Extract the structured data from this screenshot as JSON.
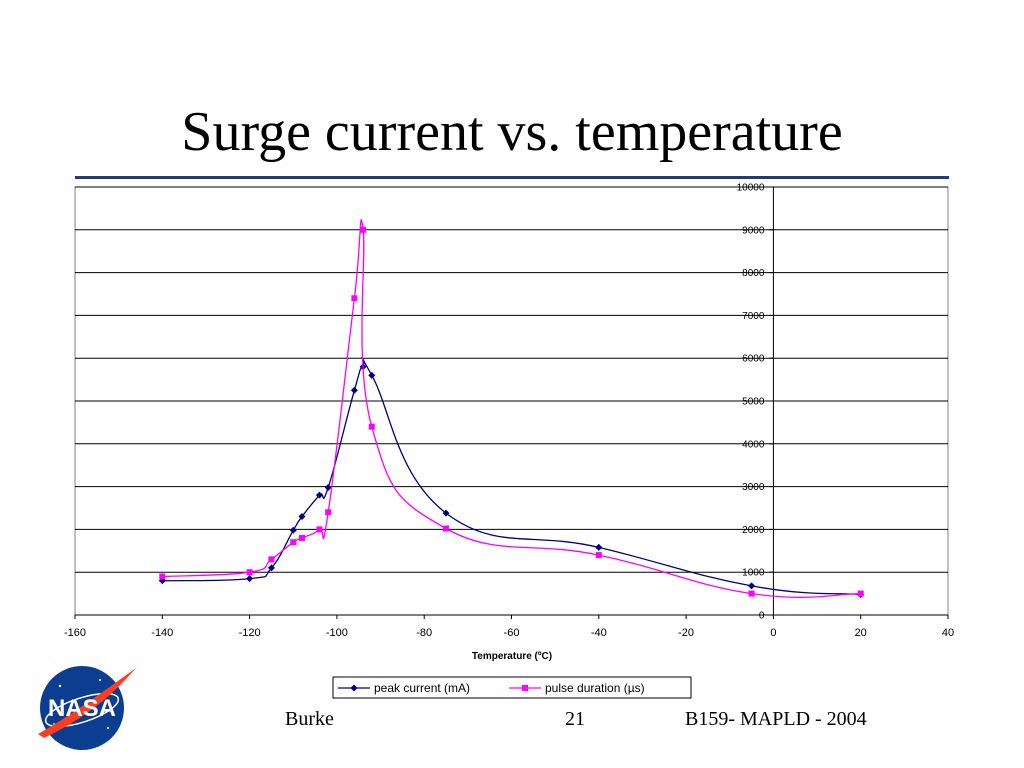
{
  "slide": {
    "title": "Surge current vs. temperature",
    "footer_author": "Burke",
    "footer_page": "21",
    "footer_conference": "B159- MAPLD - 2004",
    "logo_text": "NASA"
  },
  "colors": {
    "title_rule": "#1f3c78",
    "series_peak": "#000080",
    "series_pulse": "#ff00ff"
  },
  "chart_data": {
    "type": "scatter",
    "title": "",
    "xlabel": "Temperature (ºC)",
    "ylabel": "",
    "xlim": [
      -160,
      40
    ],
    "ylim": [
      0,
      10000
    ],
    "xticks": [
      -160,
      -140,
      -120,
      -100,
      -80,
      -60,
      -40,
      -20,
      0,
      20,
      40
    ],
    "yticks": [
      0,
      1000,
      2000,
      3000,
      4000,
      5000,
      6000,
      7000,
      8000,
      9000,
      10000
    ],
    "grid": "horizontal",
    "legend_position": "bottom",
    "series": [
      {
        "name": "peak current (mA)",
        "marker": "diamond",
        "color": "#000080",
        "x": [
          -140,
          -120,
          -115,
          -110,
          -108,
          -104,
          -102,
          -96,
          -94,
          -92,
          -75,
          -40,
          -5,
          20
        ],
        "y": [
          800,
          850,
          1100,
          1980,
          2300,
          2800,
          2980,
          5250,
          5800,
          5600,
          2380,
          1580,
          680,
          480
        ]
      },
      {
        "name": "pulse duration (µs)",
        "marker": "square",
        "color": "#ff00ff",
        "x": [
          -140,
          -120,
          -115,
          -110,
          -108,
          -104,
          -102,
          -96,
          -94,
          -92,
          -75,
          -40,
          -5,
          20
        ],
        "y": [
          900,
          1000,
          1300,
          1700,
          1800,
          2000,
          2400,
          7400,
          9000,
          4400,
          2020,
          1400,
          500,
          500
        ]
      }
    ]
  }
}
